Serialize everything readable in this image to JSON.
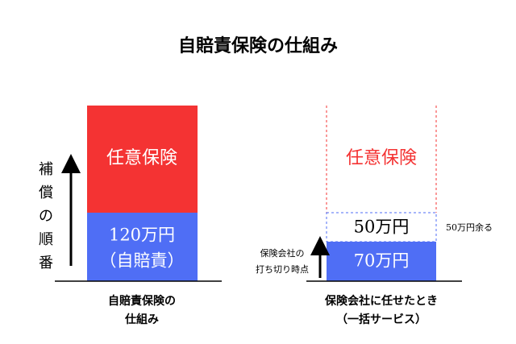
{
  "header": {
    "title": "自賠責保険の仕組み"
  },
  "left_panel": {
    "upper_box": "任意保険",
    "lower_box_lines": [
      "120万円",
      "（自賠責）"
    ],
    "axis_label": [
      "補",
      "償",
      "の",
      "順",
      "番"
    ],
    "caption_lines": [
      "自賠責保険の",
      "仕組み"
    ]
  },
  "right_panel": {
    "upper_box": "任意保険",
    "middle_box": "50万円",
    "middle_note": "50万円余る",
    "lower_box": "70万円",
    "arrow_note_lines": [
      "保険会社の",
      "打ち切り時点"
    ],
    "caption_lines": [
      "保険会社に任せたとき",
      "（一括サービス）"
    ]
  }
}
